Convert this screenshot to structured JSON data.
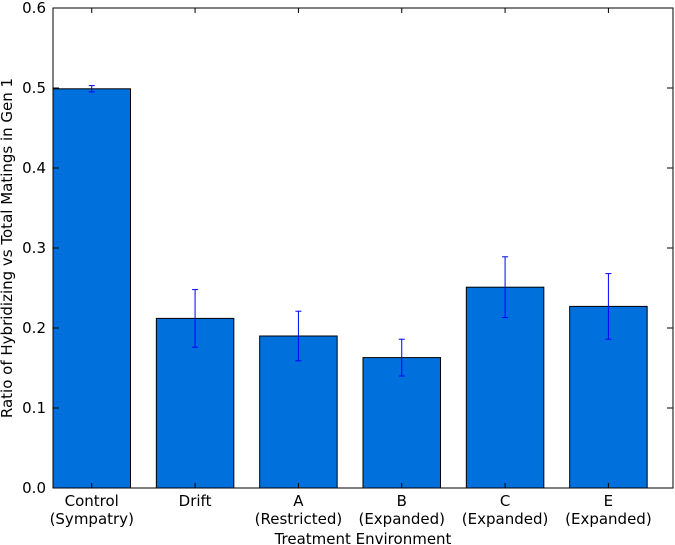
{
  "chart_data": {
    "type": "bar",
    "categories": [
      [
        "Control",
        "(Sympatry)"
      ],
      [
        "Drift"
      ],
      [
        "A",
        "(Restricted)"
      ],
      [
        "B",
        "(Expanded)"
      ],
      [
        "C",
        "(Expanded)"
      ],
      [
        "E",
        "(Expanded)"
      ]
    ],
    "values": [
      0.499,
      0.212,
      0.19,
      0.163,
      0.251,
      0.227
    ],
    "errors": [
      0.004,
      0.036,
      0.031,
      0.023,
      0.038,
      0.041
    ],
    "xlabel": "Treatment Environment",
    "ylabel": "Ratio of Hybridizing vs Total Matings in Gen 1",
    "ylim": [
      0,
      0.6
    ],
    "yticks": [
      "0.0",
      "0.1",
      "0.2",
      "0.3",
      "0.4",
      "0.5",
      "0.6"
    ],
    "grid": false,
    "legend": "none",
    "colors": {
      "bar": "#0070DD",
      "error": "#0000FF",
      "edge": "#000000"
    }
  }
}
